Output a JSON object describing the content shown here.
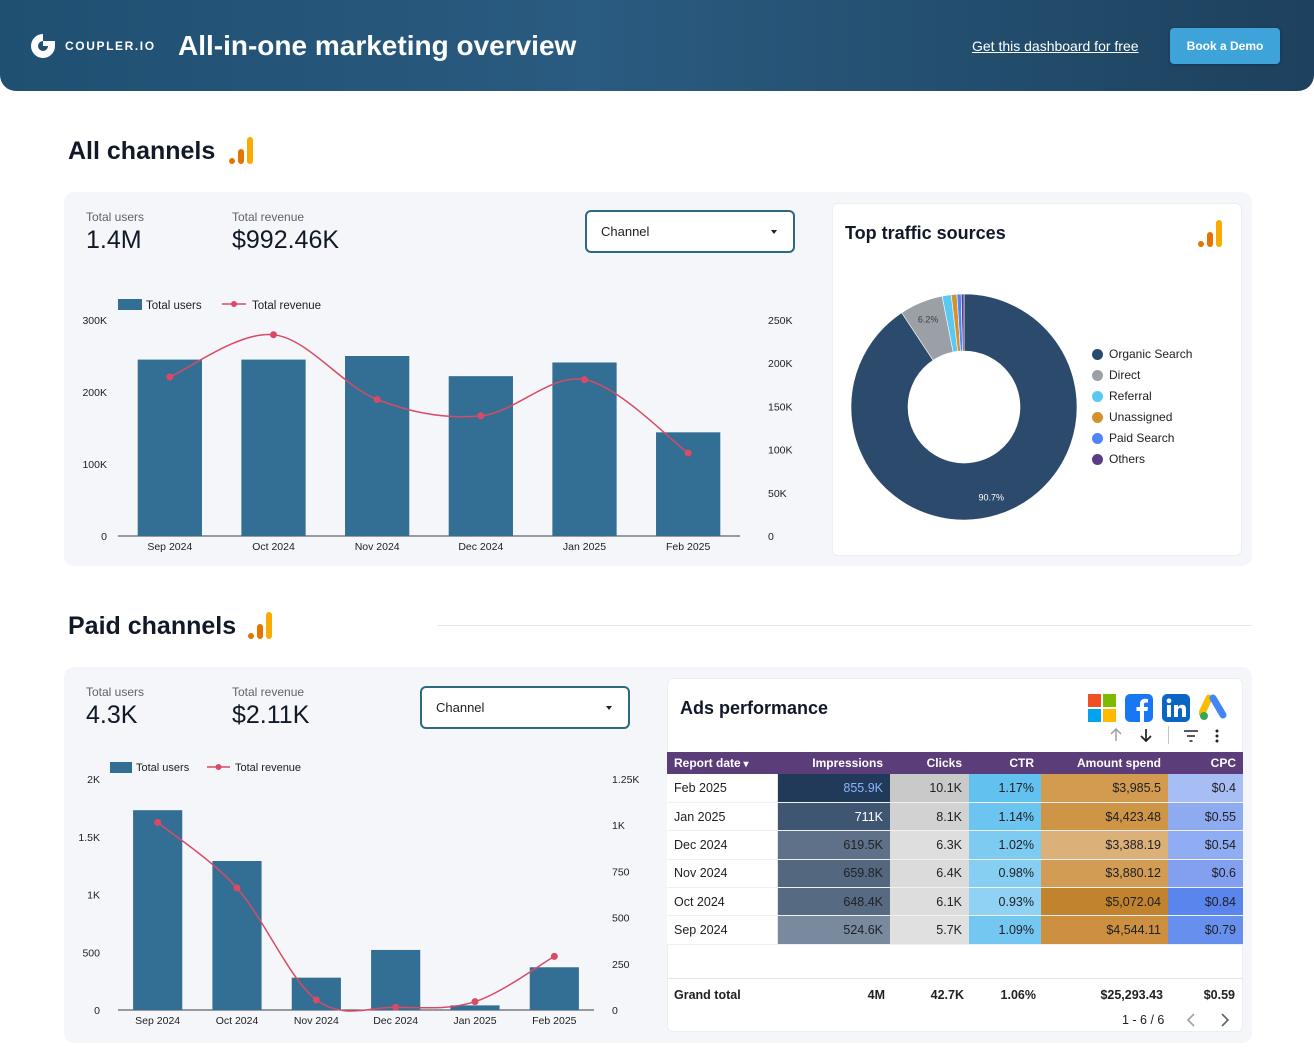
{
  "header": {
    "logo_text": "COUPLER.IO",
    "title": "All-in-one marketing overview",
    "link": "Get this dashboard for free",
    "button": "Book a Demo"
  },
  "all_channels": {
    "title": "All channels",
    "kpis": {
      "users_label": "Total users",
      "users_value": "1.4M",
      "revenue_label": "Total revenue",
      "revenue_value": "$992.46K"
    },
    "dropdown": "Channel",
    "legend": {
      "users": "Total users",
      "revenue": "Total revenue"
    }
  },
  "traffic": {
    "title": "Top traffic sources",
    "legend": [
      "Organic Search",
      "Direct",
      "Referral",
      "Unassigned",
      "Paid Search",
      "Others"
    ],
    "colors": [
      "#2c4a6b",
      "#9aa0a6",
      "#5ac8f5",
      "#d4922c",
      "#4f86f7",
      "#5b3d85"
    ]
  },
  "paid_channels": {
    "title": "Paid channels",
    "kpis": {
      "users_label": "Total users",
      "users_value": "4.3K",
      "revenue_label": "Total revenue",
      "revenue_value": "$2.11K"
    },
    "dropdown": "Channel",
    "legend": {
      "users": "Total users",
      "revenue": "Total revenue"
    }
  },
  "ads": {
    "title": "Ads performance",
    "icons": [
      "microsoft-icon",
      "facebook-icon",
      "linkedin-icon",
      "google-ads-icon"
    ],
    "columns": [
      "Report date",
      "Impressions",
      "Clicks",
      "CTR",
      "Amount spend",
      "CPC"
    ],
    "rows": [
      [
        "Feb 2025",
        "855.9K",
        "10.1K",
        "1.17%",
        "$3,985.5",
        "$0.4"
      ],
      [
        "Jan 2025",
        "711K",
        "8.1K",
        "1.14%",
        "$4,423.48",
        "$0.55"
      ],
      [
        "Dec 2024",
        "619.5K",
        "6.3K",
        "1.02%",
        "$3,388.19",
        "$0.54"
      ],
      [
        "Nov 2024",
        "659.8K",
        "6.4K",
        "0.98%",
        "$3,880.12",
        "$0.6"
      ],
      [
        "Oct 2024",
        "648.4K",
        "6.1K",
        "0.93%",
        "$5,072.04",
        "$0.84"
      ],
      [
        "Sep 2024",
        "524.6K",
        "5.7K",
        "1.09%",
        "$4,544.11",
        "$0.79"
      ]
    ],
    "cell_colors": [
      [
        "#213a59",
        "#c9c9c9",
        "#63c1ef",
        "#d39b4f",
        "#a7bef5"
      ],
      [
        "#3f5673",
        "#d2d2d2",
        "#6cc4f0",
        "#cf9546",
        "#8eabf2"
      ],
      [
        "#5f7189",
        "#dedede",
        "#7ecbf2",
        "#dcb079",
        "#90acf2"
      ],
      [
        "#53677f",
        "#dbdbdb",
        "#86cef2",
        "#d39c55",
        "#839ff0"
      ],
      [
        "#566a81",
        "#dddddd",
        "#90d2f3",
        "#c1832e",
        "#5a85ec"
      ],
      [
        "#7a8a9e",
        "#e0e0e0",
        "#74c7f1",
        "#cc9040",
        "#6790ee"
      ]
    ],
    "cell_text_colors": [
      [
        "#8ab4f8",
        "#202124",
        "#202124",
        "#202124",
        "#202124"
      ],
      [
        "#ffffff",
        "#202124",
        "#202124",
        "#202124",
        "#202124"
      ],
      [
        "#202124",
        "#202124",
        "#202124",
        "#202124",
        "#202124"
      ],
      [
        "#202124",
        "#202124",
        "#202124",
        "#202124",
        "#202124"
      ],
      [
        "#202124",
        "#202124",
        "#202124",
        "#202124",
        "#202124"
      ],
      [
        "#202124",
        "#202124",
        "#202124",
        "#202124",
        "#202124"
      ]
    ],
    "grand_total": [
      "Grand total",
      "4M",
      "42.7K",
      "1.06%",
      "$25,293.43",
      "$0.59"
    ],
    "pager": "1 - 6 / 6"
  },
  "chart_data": [
    {
      "type": "bar",
      "categories": [
        "Sep 2024",
        "Oct 2024",
        "Nov 2024",
        "Dec 2024",
        "Jan 2025",
        "Feb 2025"
      ],
      "series": [
        {
          "name": "Total users",
          "axis": "left",
          "values": [
            245000,
            245000,
            250000,
            222000,
            241000,
            144000
          ],
          "color": "#336f94"
        },
        {
          "name": "Total revenue",
          "axis": "right",
          "type": "line",
          "values": [
            184000,
            233000,
            158000,
            139000,
            181000,
            96000
          ],
          "color": "#d94a65"
        }
      ],
      "left_ticks": [
        "0",
        "100K",
        "200K",
        "300K"
      ],
      "ylim_left": [
        0,
        300000
      ],
      "right_ticks": [
        "0",
        "50K",
        "100K",
        "150K",
        "200K",
        "250K"
      ],
      "ylim_right": [
        0,
        250000
      ],
      "legend_position": "top-left"
    },
    {
      "type": "pie",
      "categories": [
        "Organic Search",
        "Direct",
        "Referral",
        "Unassigned",
        "Paid Search",
        "Others"
      ],
      "values": [
        90.7,
        6.2,
        1.3,
        0.8,
        0.6,
        0.4
      ],
      "labels": [
        "90.7%",
        "6.2%"
      ],
      "donut": true,
      "legend_position": "right"
    },
    {
      "type": "bar",
      "categories": [
        "Sep 2024",
        "Oct 2024",
        "Nov 2024",
        "Dec 2024",
        "Jan 2025",
        "Feb 2025"
      ],
      "series": [
        {
          "name": "Total users",
          "axis": "left",
          "values": [
            1730,
            1290,
            280,
            520,
            40,
            370
          ],
          "color": "#336f94"
        },
        {
          "name": "Total revenue",
          "axis": "right",
          "type": "line",
          "values": [
            1015,
            660,
            55,
            15,
            45,
            290
          ],
          "color": "#d94a65"
        }
      ],
      "left_ticks": [
        "0",
        "500",
        "1K",
        "1.5K",
        "2K"
      ],
      "ylim_left": [
        0,
        2000
      ],
      "right_ticks": [
        "0",
        "250",
        "500",
        "750",
        "1K",
        "1.25K"
      ],
      "ylim_right": [
        0,
        1250
      ],
      "legend_position": "top-left"
    }
  ]
}
